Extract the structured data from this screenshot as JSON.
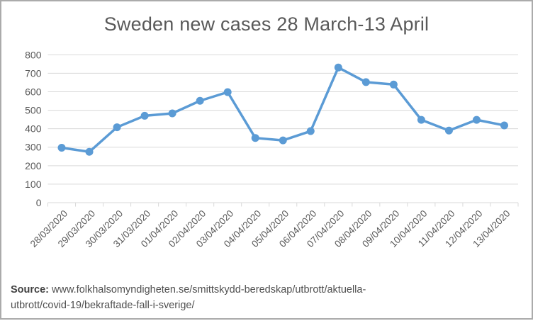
{
  "title": "Sweden new cases 28 March-13 April",
  "source": {
    "label": "Source:",
    "line1": " www.folkhalsomyndigheten.se/smittskydd-beredskap/utbrott/aktuella-",
    "line2": "utbrott/covid-19/bekraftade-fall-i-sverige/"
  },
  "colors": {
    "series_blue": "#5B9BD5",
    "gridline": "#d9d9d9",
    "axis_text": "#595959",
    "frame_border": "#ababab"
  },
  "chart_data": {
    "type": "line",
    "title": "Sweden new cases 28 March-13 April",
    "categories": [
      "28/03/2020",
      "29/03/2020",
      "30/03/2020",
      "31/03/2020",
      "01/04/2020",
      "02/04/2020",
      "03/04/2020",
      "04/04/2020",
      "05/04/2020",
      "06/04/2020",
      "07/04/2020",
      "08/04/2020",
      "09/04/2020",
      "10/04/2020",
      "11/04/2020",
      "12/04/2020",
      "13/04/2020"
    ],
    "series": [
      {
        "name": "Sweden new cases",
        "values": [
          297,
          275,
          408,
          470,
          483,
          551,
          598,
          350,
          337,
          387,
          731,
          652,
          639,
          448,
          390,
          448,
          418
        ]
      }
    ],
    "xlabel": "",
    "ylabel": "",
    "ylim": [
      0,
      800
    ],
    "yticks": [
      0,
      100,
      200,
      300,
      400,
      500,
      600,
      700,
      800
    ],
    "grid": true,
    "legend": false,
    "marker": "circle",
    "x_label_rotation_deg": 45
  }
}
